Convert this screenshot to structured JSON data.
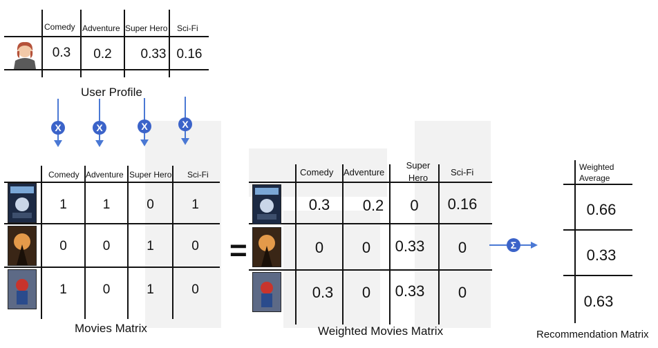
{
  "user_profile": {
    "caption": "User Profile",
    "headers": [
      "Comedy",
      "Adventure",
      "Super Hero",
      "Sci-Fi"
    ],
    "values": [
      "0.3",
      "0.2",
      "0.33",
      "0.16"
    ]
  },
  "operators": {
    "multiply_symbol": "X",
    "equals_symbol": "=",
    "sum_symbol": "Σ"
  },
  "movies_matrix": {
    "caption": "Movies Matrix",
    "headers": [
      "Comedy",
      "Adventure",
      "Super Hero",
      "Sci-Fi"
    ],
    "rows": [
      [
        "1",
        "1",
        "0",
        "1"
      ],
      [
        "0",
        "0",
        "1",
        "0"
      ],
      [
        "1",
        "0",
        "1",
        "0"
      ]
    ]
  },
  "weighted_movies_matrix": {
    "caption": "Weighted Movies Matrix",
    "headers": [
      "Comedy",
      "Adventure",
      "Super Hero",
      "Sci-Fi"
    ],
    "rows": [
      [
        "0.3",
        "0.2",
        "0",
        "0.16"
      ],
      [
        "0",
        "0",
        "0.33",
        "0"
      ],
      [
        "0.3",
        "0",
        "0.33",
        "0"
      ]
    ]
  },
  "recommendation_matrix": {
    "caption": "Recommendation Matrix",
    "header": "Weighted Average",
    "values": [
      "0.66",
      "0.33",
      "0.63"
    ]
  },
  "colors": {
    "operator_blue": "#3b63c9",
    "arrow_blue": "#4a78d4"
  },
  "icons": [
    "user-avatar-icon",
    "movie-poster-icon"
  ]
}
